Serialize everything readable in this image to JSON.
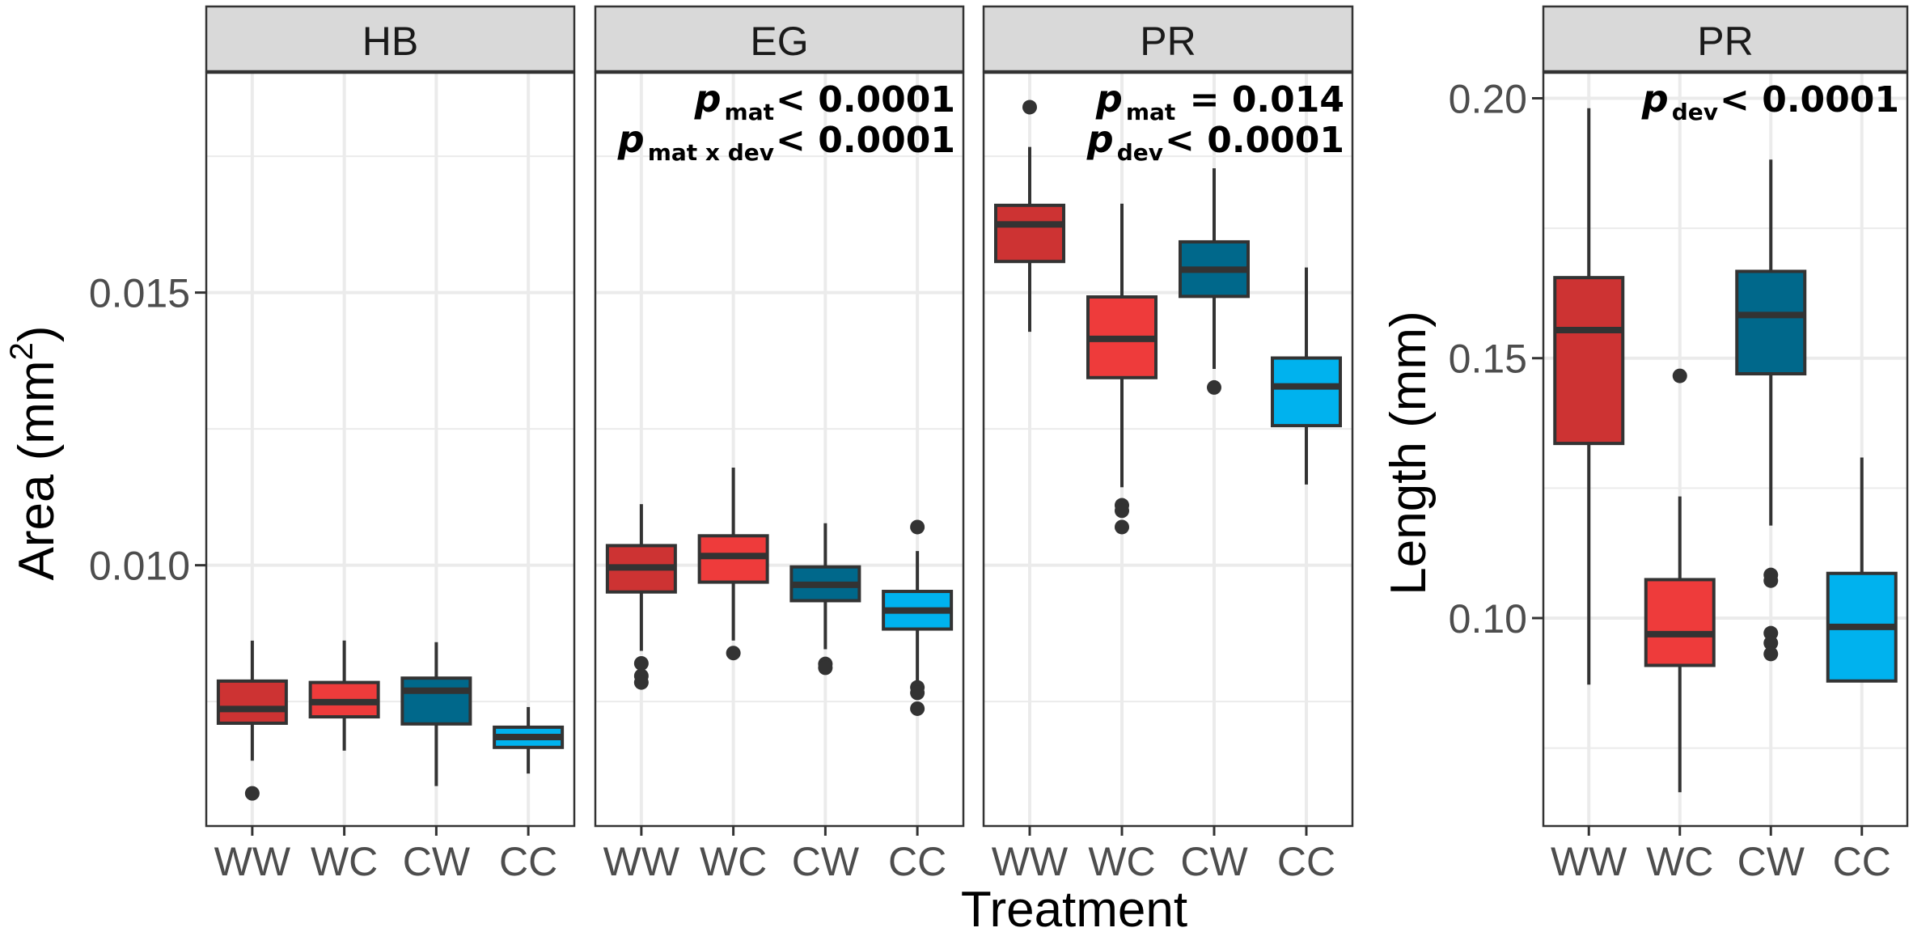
{
  "chart_data": {
    "type": "boxplot",
    "xlabel": "Treatment",
    "categories": [
      "WW",
      "WC",
      "CW",
      "CC"
    ],
    "colors": {
      "WW": "#CD3333",
      "WC": "#EE3B3B",
      "CW": "#00688B",
      "CC": "#00B2EE",
      "outline": "#333333",
      "strip_bg": "#D9D9D9",
      "grid": "#EBEBEB"
    },
    "axes": {
      "area": {
        "ylabel": "Area",
        "ylabel_unit": "mm",
        "ylabel_sup": "2",
        "ylim": [
          0.005218,
          0.01903
        ],
        "ticks": [
          0.01,
          0.015
        ],
        "tick_labels": [
          "0.010",
          "0.015"
        ],
        "minor": [
          0.0075,
          0.0125,
          0.0175
        ]
      },
      "length": {
        "ylabel": "Length (mm)",
        "ylim": [
          0.06,
          0.2049
        ],
        "ticks": [
          0.1,
          0.15,
          0.2
        ],
        "tick_labels": [
          "0.10",
          "0.15",
          "0.20"
        ],
        "minor": [
          0.075,
          0.125,
          0.175
        ]
      }
    },
    "panels": [
      {
        "title": "HB",
        "axis": "area",
        "annotations": [],
        "boxes": [
          {
            "cat": "WW",
            "min": 0.006416,
            "q1": 0.007103,
            "median": 0.007364,
            "q3": 0.007876,
            "max": 0.008617,
            "outliers": [
              0.005817
            ]
          },
          {
            "cat": "WC",
            "min": 0.0066,
            "q1": 0.00722,
            "median": 0.00749,
            "q3": 0.00785,
            "max": 0.00862,
            "outliers": []
          },
          {
            "cat": "CW",
            "min": 0.00595,
            "q1": 0.00709,
            "median": 0.0077,
            "q3": 0.00793,
            "max": 0.00859,
            "outliers": []
          },
          {
            "cat": "CC",
            "min": 0.00618,
            "q1": 0.00666,
            "median": 0.00685,
            "q3": 0.00703,
            "max": 0.0074,
            "outliers": []
          }
        ]
      },
      {
        "title": "EG",
        "axis": "area",
        "annotations": [
          {
            "p": "p",
            "sub": "mat",
            "rest": "< 0.0001"
          },
          {
            "p": "p",
            "sub": "mat x dev",
            "rest": "< 0.0001"
          }
        ],
        "boxes": [
          {
            "cat": "WW",
            "min": 0.00843,
            "q1": 0.00951,
            "median": 0.00996,
            "q3": 0.01036,
            "max": 0.01112,
            "outliers": [
              0.0082,
              0.00797,
              0.00785
            ]
          },
          {
            "cat": "WC",
            "min": 0.00862,
            "q1": 0.00969,
            "median": 0.01017,
            "q3": 0.01054,
            "max": 0.01179,
            "outliers": [
              0.00839
            ]
          },
          {
            "cat": "CW",
            "min": 0.00846,
            "q1": 0.00935,
            "median": 0.00964,
            "q3": 0.00997,
            "max": 0.01077,
            "outliers": [
              0.00819,
              0.00812
            ]
          },
          {
            "cat": "CC",
            "min": 0.00785,
            "q1": 0.00883,
            "median": 0.00917,
            "q3": 0.00952,
            "max": 0.01026,
            "outliers": [
              0.0107,
              0.00776,
              0.00766,
              0.00737
            ]
          }
        ]
      },
      {
        "title": "PR",
        "axis": "area",
        "annotations": [
          {
            "p": "p",
            "sub": "mat",
            "rest": " = 0.014"
          },
          {
            "p": "p",
            "sub": "dev",
            "rest": "< 0.0001"
          }
        ],
        "boxes": [
          {
            "cat": "WW",
            "min": 0.01428,
            "q1": 0.01557,
            "median": 0.01625,
            "q3": 0.0166,
            "max": 0.01767,
            "outliers": [
              0.0184
            ]
          },
          {
            "cat": "WC",
            "min": 0.01143,
            "q1": 0.01344,
            "median": 0.01415,
            "q3": 0.01492,
            "max": 0.01663,
            "outliers": [
              0.0111,
              0.011,
              0.0107
            ]
          },
          {
            "cat": "CW",
            "min": 0.0136,
            "q1": 0.01493,
            "median": 0.01542,
            "q3": 0.01593,
            "max": 0.01728,
            "outliers": [
              0.01326
            ]
          },
          {
            "cat": "CC",
            "min": 0.01148,
            "q1": 0.01256,
            "median": 0.01328,
            "q3": 0.0138,
            "max": 0.01546,
            "outliers": []
          }
        ]
      },
      {
        "title": "PR",
        "axis": "length",
        "annotations": [
          {
            "p": "p",
            "sub": "dev",
            "rest": "< 0.0001"
          }
        ],
        "boxes": [
          {
            "cat": "WW",
            "min": 0.0872,
            "q1": 0.1336,
            "median": 0.1554,
            "q3": 0.1655,
            "max": 0.1981,
            "outliers": []
          },
          {
            "cat": "WC",
            "min": 0.0665,
            "q1": 0.0909,
            "median": 0.0969,
            "q3": 0.1074,
            "max": 0.1234,
            "outliers": [
              0.1466
            ]
          },
          {
            "cat": "CW",
            "min": 0.1178,
            "q1": 0.147,
            "median": 0.1583,
            "q3": 0.1667,
            "max": 0.1882,
            "outliers": [
              0.1083,
              0.1072,
              0.0971,
              0.0952,
              0.0931
            ]
          },
          {
            "cat": "CC",
            "min": 0.0879,
            "q1": 0.0879,
            "median": 0.0983,
            "q3": 0.1086,
            "max": 0.1309,
            "outliers": []
          }
        ]
      }
    ]
  }
}
